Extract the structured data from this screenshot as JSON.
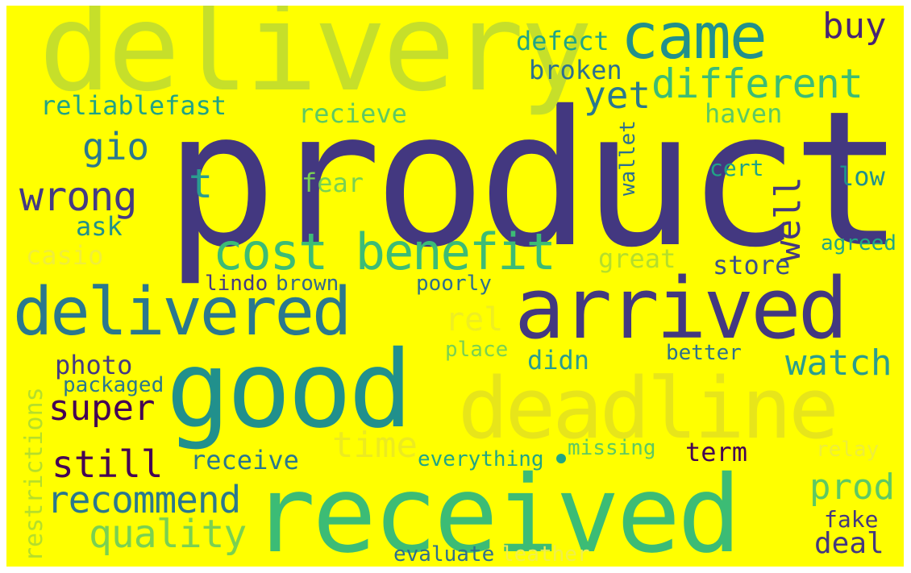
{
  "words": [
    {
      "key": "product",
      "text": "product",
      "color": "#433880"
    },
    {
      "key": "delivery",
      "text": "delivery",
      "color": "#c6df2a"
    },
    {
      "key": "received",
      "text": "received",
      "color": "#3cbc75"
    },
    {
      "key": "good",
      "text": "good",
      "color": "#21908c"
    },
    {
      "key": "arrived",
      "text": "arrived",
      "color": "#433880"
    },
    {
      "key": "deadline",
      "text": "deadline",
      "color": "#e7e51a"
    },
    {
      "key": "delivered",
      "text": "delivered",
      "color": "#2a788e"
    },
    {
      "key": "came",
      "text": "came",
      "color": "#21908c"
    },
    {
      "key": "cost_benefit",
      "text": "cost benefit",
      "color": "#3cbc75"
    },
    {
      "key": "different",
      "text": "different",
      "color": "#3cbc75"
    },
    {
      "key": "wrong",
      "text": "wrong",
      "color": "#443a83"
    },
    {
      "key": "buy",
      "text": "buy",
      "color": "#482475"
    },
    {
      "key": "yet",
      "text": "yet",
      "color": "#2a788e"
    },
    {
      "key": "gio",
      "text": "gio",
      "color": "#2a788e"
    },
    {
      "key": "t",
      "text": "t",
      "color": "#2a9d8f"
    },
    {
      "key": "quality",
      "text": "quality",
      "color": "#7ad151"
    },
    {
      "key": "recommend",
      "text": "recommend",
      "color": "#2a788e"
    },
    {
      "key": "still",
      "text": "still",
      "color": "#440154"
    },
    {
      "key": "super",
      "text": "super",
      "color": "#440154"
    },
    {
      "key": "watch",
      "text": "watch",
      "color": "#2a9d8f"
    },
    {
      "key": "time",
      "text": "time",
      "color": "#eceb20"
    },
    {
      "key": "prod",
      "text": "prod",
      "color": "#5ec962"
    },
    {
      "key": "well",
      "text": "well",
      "color": "#433880"
    },
    {
      "key": "rel",
      "text": "rel",
      "color": "#eeee22"
    },
    {
      "key": "deal",
      "text": "deal",
      "color": "#433880"
    },
    {
      "key": "defect",
      "text": "defect",
      "color": "#21a585"
    },
    {
      "key": "broken",
      "text": "broken",
      "color": "#2d708e"
    },
    {
      "key": "reliablefast",
      "text": "reliablefast",
      "color": "#20a386"
    },
    {
      "key": "recieve",
      "text": "recieve",
      "color": "#5ec962"
    },
    {
      "key": "haven",
      "text": "haven",
      "color": "#5ec962"
    },
    {
      "key": "fear",
      "text": "fear",
      "color": "#7ad151"
    },
    {
      "key": "cert",
      "text": "cert",
      "color": "#20a386"
    },
    {
      "key": "low",
      "text": "low",
      "color": "#21908c"
    },
    {
      "key": "wallet",
      "text": "wallet",
      "color": "#2d708e"
    },
    {
      "key": "ask",
      "text": "ask",
      "color": "#21908c"
    },
    {
      "key": "casio",
      "text": "casio",
      "color": "#f0ee3a"
    },
    {
      "key": "great",
      "text": "great",
      "color": "#b5de2b"
    },
    {
      "key": "store",
      "text": "store",
      "color": "#3b528b"
    },
    {
      "key": "agreed",
      "text": "agreed",
      "color": "#21a585"
    },
    {
      "key": "lindo",
      "text": "lindo",
      "color": "#443a83"
    },
    {
      "key": "brown",
      "text": "brown",
      "color": "#31688e"
    },
    {
      "key": "poorly",
      "text": "poorly",
      "color": "#2d708e"
    },
    {
      "key": "photo",
      "text": "photo",
      "color": "#443a83"
    },
    {
      "key": "place",
      "text": "place",
      "color": "#7ad151"
    },
    {
      "key": "didn",
      "text": "didn",
      "color": "#2a9d8f"
    },
    {
      "key": "better",
      "text": "better",
      "color": "#2d708e"
    },
    {
      "key": "packaged",
      "text": "packaged",
      "color": "#2a788e"
    },
    {
      "key": "restrictions",
      "text": "restrictions",
      "color": "#b5de2b"
    },
    {
      "key": "receive",
      "text": "receive",
      "color": "#2a788e"
    },
    {
      "key": "everything",
      "text": "everything",
      "color": "#21a585"
    },
    {
      "key": "missing",
      "text": "missing",
      "color": "#5ec962"
    },
    {
      "key": "term",
      "text": "term",
      "color": "#440154"
    },
    {
      "key": "relay",
      "text": "relay",
      "color": "#eeee3a"
    },
    {
      "key": "fake",
      "text": "fake",
      "color": "#433880"
    },
    {
      "key": "evaluate",
      "text": "evaluate",
      "color": "#2d708e"
    },
    {
      "key": "leather",
      "text": "leather",
      "color": "#f1f04a"
    }
  ]
}
